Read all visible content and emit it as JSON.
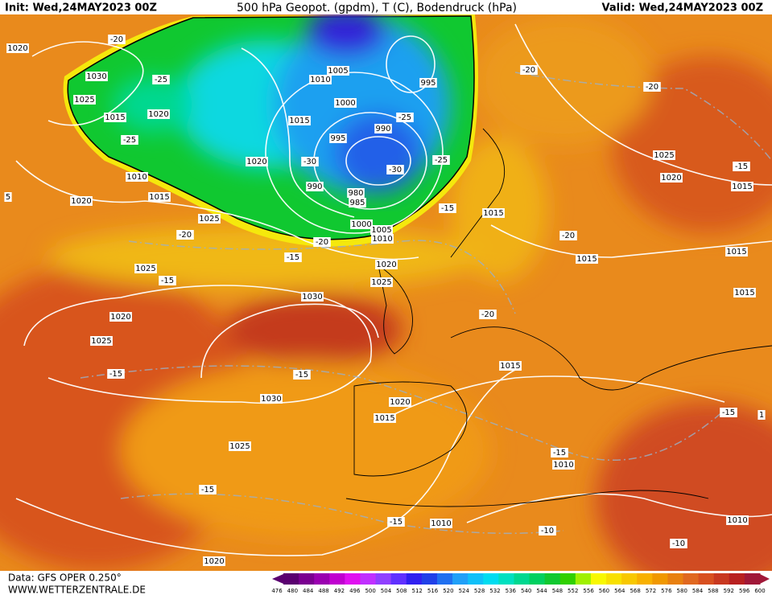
{
  "header": {
    "init": "Init: Wed,24MAY2023 00Z",
    "title": "500 hPa Geopot. (gpdm), T (C), Bodendruck (hPa)",
    "valid": "Valid: Wed,24MAY2023 00Z"
  },
  "footer": {
    "source": "Data: GFS OPER 0.250°",
    "site": "WWW.WETTERZENTRALE.DE"
  },
  "colorbar": {
    "ticks": [
      476,
      480,
      484,
      488,
      492,
      496,
      500,
      504,
      508,
      512,
      516,
      520,
      524,
      528,
      532,
      536,
      540,
      544,
      548,
      552,
      556,
      560,
      564,
      568,
      572,
      576,
      580,
      584,
      588,
      592,
      596,
      600
    ],
    "colors": [
      "#5a0070",
      "#7a0090",
      "#9a00b0",
      "#c000d0",
      "#e010f0",
      "#c030ff",
      "#9040ff",
      "#6030ff",
      "#3020f0",
      "#2040e8",
      "#2070f0",
      "#20a0f8",
      "#10c0f8",
      "#00dcf0",
      "#00e0c0",
      "#00d890",
      "#00d060",
      "#10c830",
      "#30d000",
      "#a0f000",
      "#f8f800",
      "#f8e000",
      "#f8c800",
      "#f8b000",
      "#f09800",
      "#e88010",
      "#e06820",
      "#d85020",
      "#c83820",
      "#b82020",
      "#a01838"
    ]
  },
  "map_labels": [
    "1020",
    "1030",
    "1025",
    "1015",
    "1020",
    "-20",
    "-25",
    "-25",
    "1010",
    "1015",
    "1020",
    "1025",
    "-20",
    "1025",
    "-15",
    "1020",
    "1025",
    "-15",
    "1030",
    "-15",
    "1030",
    "1020",
    "1015",
    "1025",
    "-15",
    "1020",
    "-15",
    "1010",
    "-10",
    "1010",
    "-15",
    "-10",
    "1010",
    "-15",
    "1015",
    "-20",
    "1015",
    "-20",
    "1015",
    "1020",
    "1025",
    "-15",
    "-20",
    "1010",
    "1005",
    "1000",
    "985",
    "980",
    "990",
    "1020",
    "-30",
    "1015",
    "995",
    "1000",
    "1010",
    "1005",
    "990",
    "-25",
    "-30",
    "-25",
    "995",
    "-20",
    "-20",
    "1025",
    "1020",
    "-15",
    "1015",
    "1015",
    "1015",
    "-15",
    "5",
    "1"
  ]
}
